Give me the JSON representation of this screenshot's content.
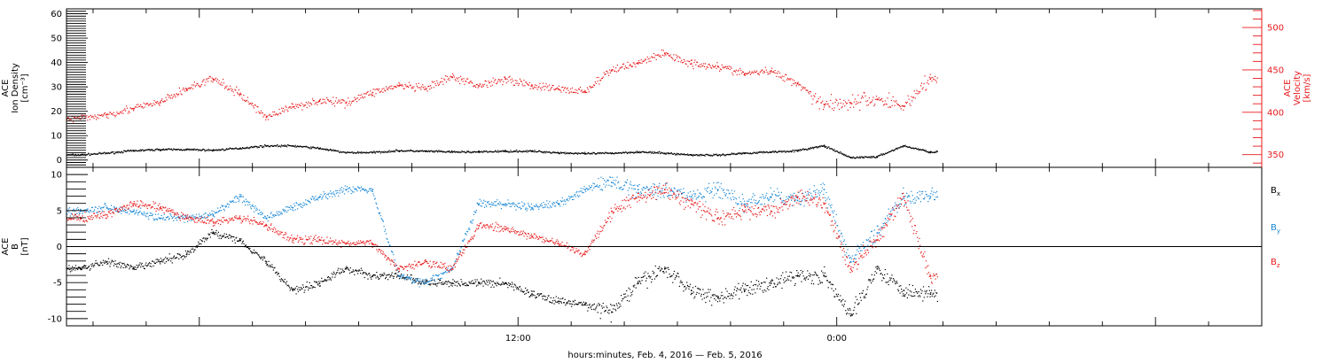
{
  "figure": {
    "xlabel": "hours:minutes, Feb.  4, 2016 — Feb.  5, 2016"
  },
  "colors": {
    "black": "#000000",
    "red": "#e8191b",
    "blue": "#1a88d8"
  },
  "chart_data": [
    {
      "type": "scatter",
      "panel": "plasma",
      "ylabel_left": [
        "ACE",
        "Ion Density",
        "[cm⁻³]"
      ],
      "ylabel_right": [
        "ACE",
        "Velocity",
        "[km/s]"
      ],
      "x_unit": "hours since 2016-02-04 00:00 UT",
      "xlim": [
        -5,
        40
      ],
      "x_ticks": [
        {
          "x": 12,
          "label": "12:00"
        },
        {
          "x": 24,
          "label": "0:00"
        }
      ],
      "ylim_left": [
        -3,
        62
      ],
      "yticks_left": [
        0,
        10,
        20,
        30,
        40,
        50,
        60
      ],
      "ylim_right": [
        335,
        522
      ],
      "yticks_right": [
        350,
        400,
        450,
        500
      ],
      "grid": false,
      "series": [
        {
          "key": "density",
          "axis": "left",
          "color": "#000000",
          "x": [
            -4.5,
            -3.5,
            -2.5,
            -1.5,
            -0.5,
            0.5,
            1.5,
            2.5,
            3.5,
            4.5,
            5.5,
            6.5,
            7.5,
            8.5,
            9.5,
            10.5,
            11.5,
            12.5,
            13.5,
            14.5,
            15.5,
            16.5,
            17.5,
            18.5,
            19.5,
            20.5,
            21.5,
            22.5,
            23.5,
            24.5,
            25.5,
            26.5,
            27.5
          ],
          "y": [
            2.3,
            3.0,
            4.0,
            4.5,
            4.5,
            4.2,
            5.0,
            6.0,
            6.0,
            5.0,
            3.2,
            3.3,
            4.0,
            3.8,
            3.5,
            3.5,
            3.8,
            3.8,
            3.2,
            2.8,
            3.0,
            3.5,
            3.0,
            2.3,
            2.2,
            3.0,
            3.5,
            4.0,
            6.0,
            1.2,
            1.5,
            6.0,
            3.5
          ]
        },
        {
          "key": "velocity",
          "axis": "right",
          "color": "#e8191b",
          "x": [
            -4.5,
            -3.5,
            -2.5,
            -1.5,
            -0.5,
            0.5,
            1.5,
            2.5,
            3.5,
            4.5,
            5.5,
            6.5,
            7.5,
            8.5,
            9.5,
            10.5,
            11.5,
            12.5,
            13.5,
            14.5,
            15.5,
            16.5,
            17.5,
            18.5,
            19.5,
            20.5,
            21.5,
            22.5,
            23.5,
            24.5,
            25.5,
            26.5,
            27.5
          ],
          "y": [
            393,
            398,
            405,
            412,
            428,
            440,
            422,
            395,
            407,
            414,
            412,
            424,
            432,
            428,
            442,
            432,
            440,
            432,
            428,
            425,
            450,
            459,
            470,
            458,
            455,
            446,
            449,
            435,
            410,
            412,
            416,
            408,
            440
          ]
        }
      ]
    },
    {
      "type": "scatter",
      "panel": "magnetic",
      "ylabel_left": [
        "ACE",
        "B",
        "[nT]"
      ],
      "x_unit": "hours since 2016-02-04 00:00 UT",
      "xlim": [
        -5,
        40
      ],
      "x_ticks": [
        {
          "x": 12,
          "label": "12:00"
        },
        {
          "x": 24,
          "label": "0:00"
        }
      ],
      "ylim": [
        -11,
        11
      ],
      "yticks": [
        -10,
        -5,
        0,
        5,
        10
      ],
      "grid": false,
      "zero_line": 0,
      "legend_position": "right",
      "series": [
        {
          "key": "bx",
          "name": "B",
          "name_sub": "x",
          "color": "#000000",
          "x": [
            -4.5,
            -3.5,
            -2.5,
            -1.5,
            -0.5,
            0.5,
            1.5,
            2.5,
            3.5,
            4.5,
            5.5,
            6.5,
            7.5,
            8.5,
            9.5,
            10.5,
            11.5,
            12.5,
            13.5,
            14.5,
            15.5,
            16.5,
            17.5,
            18.5,
            19.5,
            20.5,
            21.5,
            22.5,
            23.5,
            24.5,
            25.5,
            26.5,
            27.5
          ],
          "y": [
            -3,
            -2,
            -3,
            -2,
            -1,
            2,
            1,
            -2,
            -6,
            -5,
            -3,
            -4,
            -4,
            -5,
            -5,
            -5,
            -5,
            -6.5,
            -7.5,
            -8,
            -9,
            -5,
            -3,
            -6,
            -7,
            -6,
            -5,
            -4,
            -4,
            -9.5,
            -3,
            -6,
            -6.5
          ]
        },
        {
          "key": "by",
          "name": "B",
          "name_sub": "y",
          "color": "#1a88d8",
          "x": [
            -4.5,
            -3.5,
            -2.5,
            -1.5,
            -0.5,
            0.5,
            1.5,
            2.5,
            3.5,
            4.5,
            5.5,
            6.5,
            7.5,
            8.5,
            9.5,
            10.5,
            11.5,
            12.5,
            13.5,
            14.5,
            15.5,
            16.5,
            17.5,
            18.5,
            19.5,
            20.5,
            21.5,
            22.5,
            23.5,
            24.5,
            25.5,
            26.5,
            27.5
          ],
          "y": [
            5,
            5.5,
            5,
            4,
            4,
            4.5,
            7,
            4,
            5.5,
            7,
            8,
            8,
            -4,
            -5,
            -3,
            6,
            6,
            5.5,
            6,
            8,
            9,
            8,
            8,
            7,
            8,
            6,
            7,
            6.5,
            8,
            -2,
            2,
            7,
            7
          ]
        },
        {
          "key": "bz",
          "name": "B",
          "name_sub": "z",
          "color": "#e8191b",
          "x": [
            -4.5,
            -3.5,
            -2.5,
            -1.5,
            -0.5,
            0.5,
            1.5,
            2.5,
            3.5,
            4.5,
            5.5,
            6.5,
            7.5,
            8.5,
            9.5,
            10.5,
            11.5,
            12.5,
            13.5,
            14.5,
            15.5,
            16.5,
            17.5,
            18.5,
            19.5,
            20.5,
            21.5,
            22.5,
            23.5,
            24.5,
            25.5,
            26.5,
            27.5
          ],
          "y": [
            4,
            4.5,
            6,
            5.5,
            4,
            3.5,
            4,
            3,
            1,
            1,
            0.5,
            0.5,
            -3,
            -2,
            -3,
            3,
            2.5,
            1.5,
            0.5,
            -1,
            5,
            7,
            8,
            6,
            4,
            5,
            5,
            7,
            6,
            -3,
            1,
            7,
            -4
          ]
        }
      ]
    }
  ]
}
